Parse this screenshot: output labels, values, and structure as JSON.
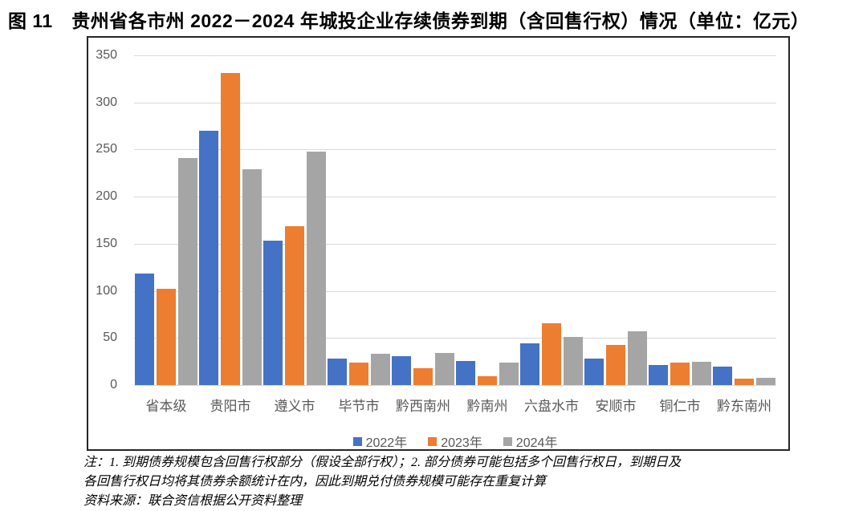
{
  "title": "图 11　贵州省各市州 2022－2024 年城投企业存续债券到期（含回售行权）情况（单位：亿元）",
  "chart_data": {
    "type": "bar",
    "title": "贵州省各市州 2022－2024 年城投企业存续债券到期（含回售行权）情况",
    "unit": "亿元",
    "categories": [
      "省本级",
      "贵阳市",
      "遵义市",
      "毕节市",
      "黔西南州",
      "黔南州",
      "六盘水市",
      "安顺市",
      "铜仁市",
      "黔东南州"
    ],
    "series": [
      {
        "name": "2022年",
        "color": "#4472C4",
        "values": [
          118,
          270,
          153,
          28,
          31,
          26,
          44,
          28,
          21,
          20
        ]
      },
      {
        "name": "2023年",
        "color": "#ED7D31",
        "values": [
          102,
          331,
          169,
          24,
          18,
          9,
          66,
          43,
          24,
          7
        ]
      },
      {
        "name": "2024年",
        "color": "#A5A5A5",
        "values": [
          241,
          229,
          248,
          33,
          34,
          24,
          51,
          57,
          25,
          8
        ]
      }
    ],
    "xlabel": "",
    "ylabel": "",
    "ylim": [
      0,
      350
    ],
    "ytick_interval": 50,
    "grid": true,
    "legend_position": "bottom"
  },
  "colors": {
    "grid": "#D9D9D9",
    "axis_text": "#595959",
    "frame_border": "#262626"
  },
  "notes": {
    "line1": "注：1. 到期债券规模包含回售行权部分（假设全部行权）；2. 部分债券可能包括多个回售行权日，到期日及",
    "line2": "各回售行权日均将其债券余额统计在内，因此到期兑付债券规模可能存在重复计算",
    "line3": "资料来源：联合资信根据公开资料整理"
  }
}
